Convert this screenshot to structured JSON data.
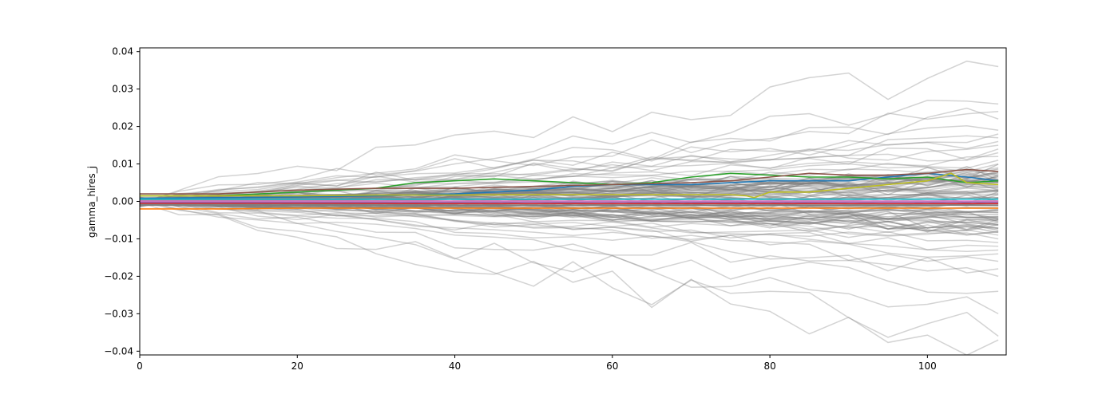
{
  "chart_data": {
    "type": "line",
    "title": "",
    "xlabel": "",
    "ylabel": "gamma_hires_j",
    "xlim": [
      0,
      110
    ],
    "ylim": [
      -0.041,
      0.041
    ],
    "x_ticks": [
      0,
      20,
      40,
      60,
      80,
      100
    ],
    "y_ticks": [
      0.04,
      0.03,
      0.02,
      0.01,
      0.0,
      -0.01,
      -0.02,
      -0.03,
      -0.04
    ],
    "x_tick_labels": [
      "0",
      "20",
      "40",
      "60",
      "80",
      "100"
    ],
    "y_tick_labels": [
      "0.04",
      "0.03",
      "0.02",
      "0.01",
      "0.00",
      "−0.01",
      "−0.02",
      "−0.03",
      "−0.04"
    ],
    "grid": false,
    "legend": "none",
    "background_series": {
      "color": "#808080",
      "opacity": 0.35,
      "count": 44,
      "x": [
        0,
        5,
        10,
        15,
        20,
        25,
        30,
        35,
        40,
        45,
        50,
        55,
        60,
        65,
        70,
        75,
        80,
        85,
        90,
        95,
        100,
        105,
        109
      ],
      "endpoints": [
        0.036,
        0.026,
        0.024,
        0.022,
        0.019,
        0.018,
        0.017,
        0.016,
        0.015,
        0.014,
        0.013,
        0.012,
        0.011,
        0.01,
        0.009,
        0.008,
        0.007,
        0.006,
        0.005,
        0.004,
        0.003,
        0.002,
        0.001,
        -0.001,
        -0.002,
        -0.003,
        -0.004,
        -0.005,
        -0.006,
        -0.007,
        -0.008,
        -0.009,
        -0.01,
        -0.011,
        -0.012,
        -0.013,
        -0.014,
        -0.016,
        -0.018,
        -0.02,
        -0.024,
        -0.03,
        -0.036,
        -0.037
      ]
    },
    "series": [
      {
        "color": "#1f77b4",
        "x": [
          0,
          10,
          20,
          30,
          40,
          50,
          55,
          60,
          70,
          80,
          90,
          100,
          105,
          109
        ],
        "values": [
          0.0008,
          0.001,
          0.0012,
          0.0015,
          0.002,
          0.003,
          0.004,
          0.0045,
          0.0045,
          0.0055,
          0.0055,
          0.0075,
          0.0065,
          0.0055
        ]
      },
      {
        "color": "#ff7f0e",
        "x": [
          0,
          10,
          20,
          40,
          60,
          80,
          100,
          109
        ],
        "values": [
          -0.002,
          -0.002,
          -0.0018,
          -0.0018,
          -0.0018,
          -0.0018,
          -0.0018,
          -0.0018
        ]
      },
      {
        "color": "#2ca02c",
        "x": [
          0,
          10,
          20,
          25,
          30,
          35,
          40,
          45,
          50,
          55,
          60,
          65,
          70,
          75,
          80,
          85,
          90,
          95,
          100,
          105,
          109
        ],
        "values": [
          0.0015,
          0.0015,
          0.0025,
          0.003,
          0.0035,
          0.005,
          0.0055,
          0.006,
          0.0055,
          0.005,
          0.0045,
          0.005,
          0.0065,
          0.0075,
          0.007,
          0.0065,
          0.0065,
          0.006,
          0.0065,
          0.005,
          0.0055
        ]
      },
      {
        "color": "#d62728",
        "x": [
          0,
          20,
          40,
          60,
          80,
          100,
          109
        ],
        "values": [
          -0.0005,
          -0.0005,
          -0.0006,
          -0.0006,
          -0.0006,
          -0.0006,
          -0.0006
        ]
      },
      {
        "color": "#9467bd",
        "x": [
          0,
          20,
          40,
          60,
          80,
          100,
          109
        ],
        "values": [
          -0.0002,
          -0.0002,
          -0.0002,
          -0.0002,
          -0.0002,
          -0.0002,
          -0.0002
        ]
      },
      {
        "color": "#8c564b",
        "x": [
          0,
          10,
          20,
          30,
          40,
          50,
          60,
          70,
          75,
          80,
          85,
          90,
          95,
          100,
          105,
          109
        ],
        "values": [
          0.002,
          0.002,
          0.003,
          0.0035,
          0.0035,
          0.004,
          0.0045,
          0.005,
          0.0055,
          0.0065,
          0.0075,
          0.007,
          0.007,
          0.0075,
          0.0085,
          0.008
        ]
      },
      {
        "color": "#e377c2",
        "x": [
          0,
          20,
          40,
          60,
          80,
          100,
          109
        ],
        "values": [
          0.0001,
          0.0001,
          0.0001,
          0.0001,
          0.0001,
          0.0001,
          0.0001
        ]
      },
      {
        "color": "#7f7f7f",
        "x": [
          0,
          20,
          40,
          60,
          80,
          100,
          109
        ],
        "values": [
          -0.001,
          -0.001,
          -0.001,
          -0.001,
          -0.001,
          -0.001,
          -0.001
        ]
      },
      {
        "color": "#bcbd22",
        "x": [
          0,
          10,
          20,
          30,
          40,
          50,
          60,
          70,
          75,
          77,
          78,
          80,
          85,
          90,
          95,
          100,
          103,
          105,
          109
        ],
        "values": [
          0.0015,
          0.0015,
          0.0015,
          0.0017,
          0.0017,
          0.0018,
          0.0018,
          0.0018,
          0.0018,
          0.0015,
          0.001,
          0.0025,
          0.0025,
          0.0035,
          0.0045,
          0.0055,
          0.0075,
          0.005,
          0.0045
        ]
      },
      {
        "color": "#17becf",
        "x": [
          0,
          20,
          40,
          60,
          80,
          100,
          109
        ],
        "values": [
          0.0006,
          0.0006,
          0.0006,
          0.0006,
          0.0006,
          0.0006,
          0.0006
        ]
      }
    ]
  }
}
